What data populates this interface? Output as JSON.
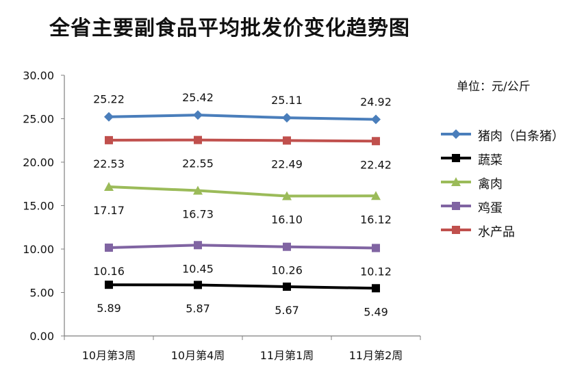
{
  "title": "全省主要副食品平均批发价变化趋势图",
  "unit": "单位：元/公斤",
  "colors": {
    "axis": "#7f7f7f",
    "pork": "#4a7ebb",
    "vegetables": "#000000",
    "poultry": "#9bbb59",
    "eggs": "#8064a2",
    "aquatic": "#c0504d"
  },
  "chart_data": {
    "type": "line",
    "categories": [
      "10月第3周",
      "10月第4周",
      "11月第1周",
      "11月第2周"
    ],
    "ylim": [
      0,
      30
    ],
    "yticks": [
      "0.00",
      "5.00",
      "10.00",
      "15.00",
      "20.00",
      "25.00",
      "30.00"
    ],
    "grid": false,
    "legend_position": "right",
    "series": [
      {
        "name": "猪肉（白条猪）",
        "key": "pork",
        "marker": "diamond",
        "values": [
          25.22,
          25.42,
          25.11,
          24.92
        ],
        "labels": [
          "25.22",
          "25.42",
          "25.11",
          "24.92"
        ],
        "label_position": "above"
      },
      {
        "name": "蔬菜",
        "key": "vegetables",
        "marker": "square",
        "values": [
          5.89,
          5.87,
          5.67,
          5.49
        ],
        "labels": [
          "5.89",
          "5.87",
          "5.67",
          "5.49"
        ],
        "label_position": "below"
      },
      {
        "name": "禽肉",
        "key": "poultry",
        "marker": "triangle",
        "values": [
          17.17,
          16.73,
          16.1,
          16.12
        ],
        "labels": [
          "17.17",
          "16.73",
          "16.10",
          "16.12"
        ],
        "label_position": "below"
      },
      {
        "name": "鸡蛋",
        "key": "eggs",
        "marker": "square",
        "values": [
          10.16,
          10.45,
          10.26,
          10.12
        ],
        "labels": [
          "10.16",
          "10.45",
          "10.26",
          "10.12"
        ],
        "label_position": "below"
      },
      {
        "name": "水产品",
        "key": "aquatic",
        "marker": "square",
        "values": [
          22.53,
          22.55,
          22.49,
          22.42
        ],
        "labels": [
          "22.53",
          "22.55",
          "22.49",
          "22.42"
        ],
        "label_position": "below"
      }
    ]
  }
}
